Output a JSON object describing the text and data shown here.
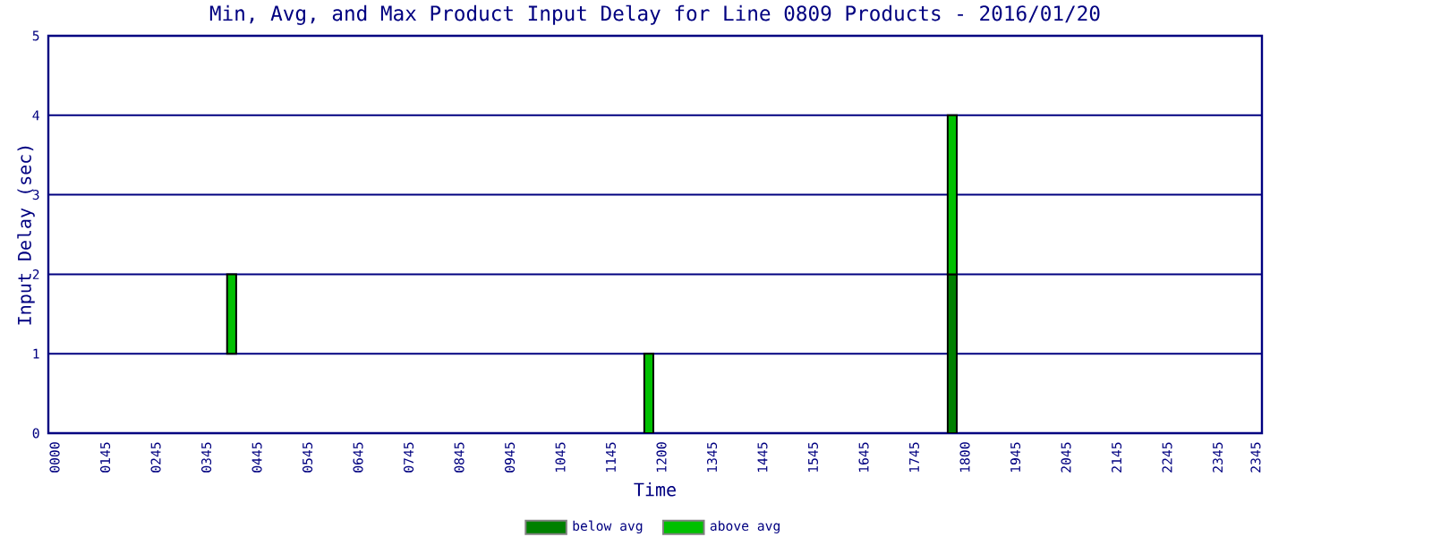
{
  "chart_data": {
    "type": "bar",
    "title": "Min, Avg, and Max Product Input Delay for Line 0809 Products - 2016/01/20",
    "xlabel": "Time",
    "ylabel": "Input Delay (sec)",
    "categories": [
      "0000",
      null,
      null,
      null,
      "0145",
      null,
      null,
      null,
      "0245",
      null,
      null,
      null,
      "0345",
      null,
      null,
      null,
      "0445",
      null,
      null,
      null,
      "0545",
      null,
      null,
      null,
      "0645",
      null,
      null,
      null,
      "0745",
      null,
      null,
      null,
      "0845",
      null,
      null,
      null,
      "0945",
      null,
      null,
      null,
      "1045",
      null,
      null,
      null,
      "1145",
      null,
      null,
      null,
      "1200",
      null,
      null,
      null,
      "1345",
      null,
      null,
      null,
      "1445",
      null,
      null,
      null,
      "1545",
      null,
      null,
      null,
      "1645",
      null,
      null,
      null,
      "1745",
      null,
      null,
      null,
      "1800",
      null,
      null,
      null,
      "1945",
      null,
      null,
      null,
      "2045",
      null,
      null,
      null,
      "2145",
      null,
      null,
      null,
      "2245",
      null,
      null,
      null,
      "2345",
      null,
      null,
      "2345"
    ],
    "series": [
      {
        "name": "below avg",
        "color": "#008000",
        "base": [
          null,
          null,
          null,
          null,
          null,
          null,
          null,
          null,
          null,
          null,
          null,
          null,
          null,
          null,
          null,
          null,
          null,
          null,
          null,
          null,
          null,
          null,
          null,
          null,
          null,
          null,
          null,
          null,
          null,
          null,
          null,
          null,
          null,
          null,
          null,
          null,
          null,
          null,
          null,
          null,
          null,
          null,
          null,
          null,
          null,
          null,
          null,
          null,
          null,
          null,
          null,
          null,
          null,
          null,
          null,
          null,
          null,
          null,
          null,
          null,
          null,
          null,
          null,
          null,
          null,
          null,
          null,
          null,
          null,
          null,
          null,
          0,
          null,
          null,
          null,
          null,
          null,
          null,
          null,
          null,
          null,
          null,
          null,
          null,
          null,
          null,
          null,
          null,
          null,
          null,
          null,
          null,
          null,
          null,
          null,
          null
        ],
        "values": [
          null,
          null,
          null,
          null,
          null,
          null,
          null,
          null,
          null,
          null,
          null,
          null,
          null,
          null,
          null,
          null,
          null,
          null,
          null,
          null,
          null,
          null,
          null,
          null,
          null,
          null,
          null,
          null,
          null,
          null,
          null,
          null,
          null,
          null,
          null,
          null,
          null,
          null,
          null,
          null,
          null,
          null,
          null,
          null,
          null,
          null,
          null,
          null,
          null,
          null,
          null,
          null,
          null,
          null,
          null,
          null,
          null,
          null,
          null,
          null,
          null,
          null,
          null,
          null,
          null,
          null,
          null,
          null,
          null,
          null,
          null,
          2,
          null,
          null,
          null,
          null,
          null,
          null,
          null,
          null,
          null,
          null,
          null,
          null,
          null,
          null,
          null,
          null,
          null,
          null,
          null,
          null,
          null,
          null,
          null,
          null
        ]
      },
      {
        "name": "above avg",
        "color": "#00c000",
        "base": [
          null,
          null,
          null,
          null,
          null,
          null,
          null,
          null,
          null,
          null,
          null,
          null,
          null,
          null,
          1,
          null,
          null,
          null,
          null,
          null,
          null,
          null,
          null,
          null,
          null,
          null,
          null,
          null,
          null,
          null,
          null,
          null,
          null,
          null,
          null,
          null,
          null,
          null,
          null,
          null,
          null,
          null,
          null,
          null,
          null,
          null,
          null,
          0,
          null,
          null,
          null,
          null,
          null,
          null,
          null,
          null,
          null,
          null,
          null,
          null,
          null,
          null,
          null,
          null,
          null,
          null,
          null,
          null,
          null,
          null,
          null,
          2,
          null,
          null,
          null,
          null,
          null,
          null,
          null,
          null,
          null,
          null,
          null,
          null,
          null,
          null,
          null,
          null,
          null,
          null,
          null,
          null,
          null,
          null,
          null,
          null
        ],
        "values": [
          null,
          null,
          null,
          null,
          null,
          null,
          null,
          null,
          null,
          null,
          null,
          null,
          null,
          null,
          1,
          null,
          null,
          null,
          null,
          null,
          null,
          null,
          null,
          null,
          null,
          null,
          null,
          null,
          null,
          null,
          null,
          null,
          null,
          null,
          null,
          null,
          null,
          null,
          null,
          null,
          null,
          null,
          null,
          null,
          null,
          null,
          null,
          1,
          null,
          null,
          null,
          null,
          null,
          null,
          null,
          null,
          null,
          null,
          null,
          null,
          null,
          null,
          null,
          null,
          null,
          null,
          null,
          null,
          null,
          null,
          null,
          2,
          null,
          null,
          null,
          null,
          null,
          null,
          null,
          null,
          null,
          null,
          null,
          null,
          null,
          null,
          null,
          null,
          null,
          null,
          null,
          null,
          null,
          null,
          null,
          null
        ]
      }
    ],
    "ylim": [
      0,
      5
    ],
    "yticks": [
      0,
      1,
      2,
      3,
      4,
      5
    ],
    "grid": "y",
    "legend": "bottom"
  }
}
